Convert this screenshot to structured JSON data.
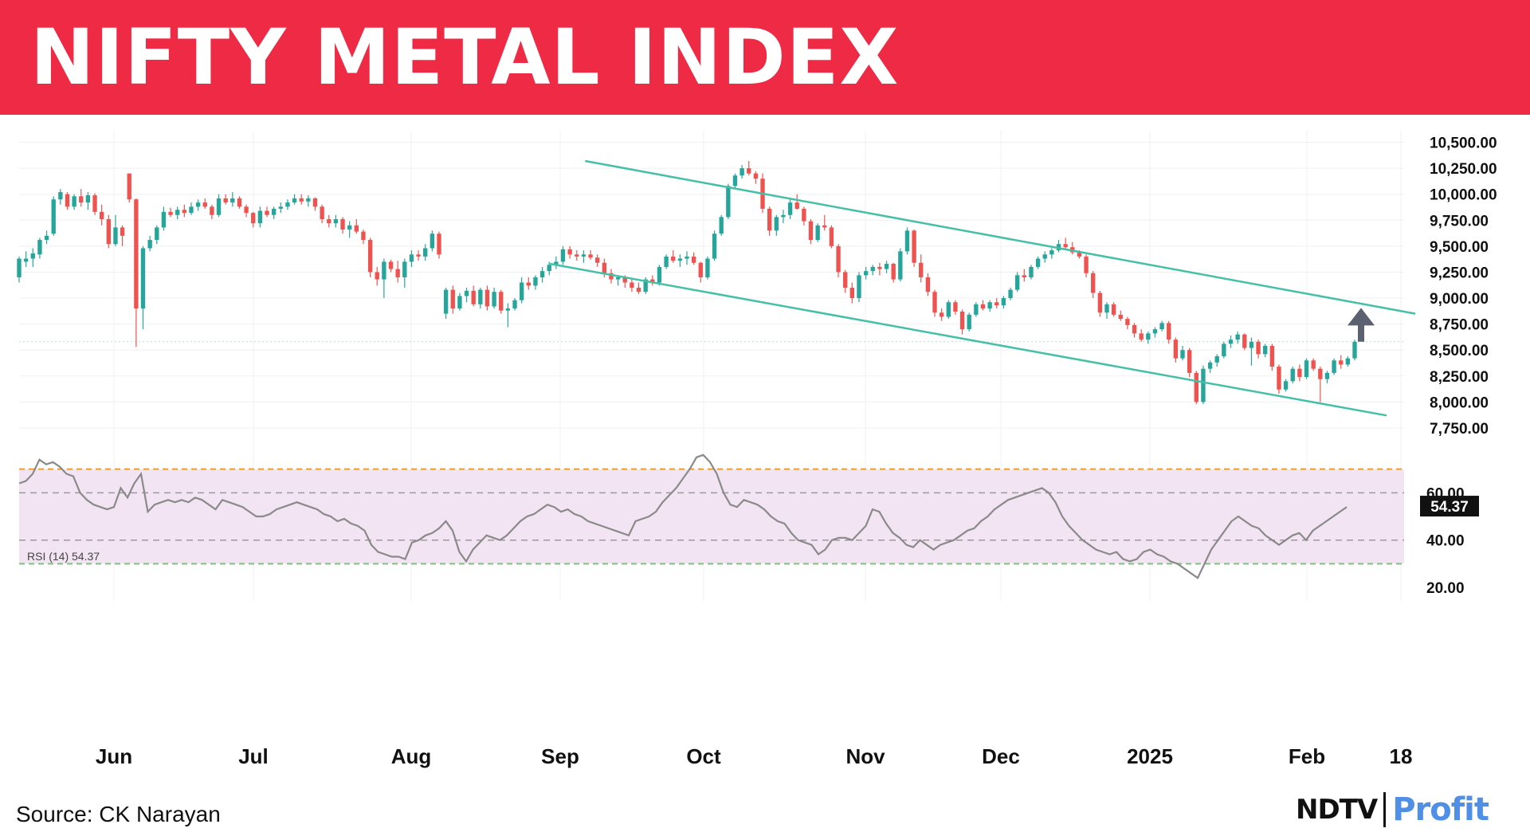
{
  "header": {
    "title": "NIFTY METAL INDEX"
  },
  "footer": {
    "source": "Source: CK Narayan",
    "logo_ndtv": "NDTV",
    "logo_profit": "Profit"
  },
  "colors": {
    "banner": "#ee2a44",
    "up": "#26a69a",
    "down": "#ef5350",
    "channel": "#45bfa6",
    "rsi_band": "#f2e4f2",
    "rsi_line": "#8a8a8a",
    "overbought": "#f0a020",
    "oversold": "#7cc47c",
    "profit": "#4f8fe6"
  },
  "chart_data": {
    "type": "candlestick",
    "price_axis": {
      "ylim": [
        7650,
        10550
      ],
      "ticks": [
        10500,
        10250,
        10000,
        9750,
        9500,
        9250,
        9000,
        8750,
        8500,
        8250,
        8000,
        7750
      ],
      "tick_labels": [
        "10,500.00",
        "10,250.00",
        "10,000.00",
        "9,750.00",
        "9,500.00",
        "9,250.00",
        "9,000.00",
        "8,750.00",
        "8,500.00",
        "8,250.00",
        "8,000.00",
        "7,750.00"
      ]
    },
    "x_axis": {
      "labels": [
        "Jun",
        "Jul",
        "Aug",
        "Sep",
        "Oct",
        "Nov",
        "Dec",
        "2025",
        "Feb",
        "18"
      ]
    },
    "reference_line": 8580,
    "candles": [
      [
        9200,
        9400,
        9150,
        9380
      ],
      [
        9350,
        9450,
        9300,
        9380
      ],
      [
        9380,
        9480,
        9300,
        9430
      ],
      [
        9420,
        9580,
        9380,
        9560
      ],
      [
        9560,
        9650,
        9520,
        9600
      ],
      [
        9620,
        9980,
        9600,
        9950
      ],
      [
        9950,
        10050,
        9900,
        10020
      ],
      [
        10000,
        10020,
        9850,
        9880
      ],
      [
        9880,
        10000,
        9850,
        9980
      ],
      [
        9980,
        10050,
        9880,
        9920
      ],
      [
        9920,
        10020,
        9850,
        9990
      ],
      [
        9990,
        10010,
        9800,
        9830
      ],
      [
        9830,
        9900,
        9700,
        9760
      ],
      [
        9760,
        9800,
        9480,
        9520
      ],
      [
        9520,
        9800,
        9500,
        9680
      ],
      [
        9680,
        9700,
        9500,
        9600
      ],
      [
        10200,
        10200,
        9920,
        9950
      ],
      [
        9950,
        9960,
        8530,
        8900
      ],
      [
        8900,
        9500,
        8700,
        9480
      ],
      [
        9480,
        9600,
        9450,
        9560
      ],
      [
        9560,
        9700,
        9520,
        9680
      ],
      [
        9680,
        9880,
        9650,
        9830
      ],
      [
        9830,
        9870,
        9780,
        9800
      ],
      [
        9800,
        9880,
        9760,
        9850
      ],
      [
        9850,
        9900,
        9780,
        9820
      ],
      [
        9820,
        9920,
        9800,
        9880
      ],
      [
        9880,
        9950,
        9840,
        9920
      ],
      [
        9920,
        9960,
        9860,
        9880
      ],
      [
        9880,
        9900,
        9760,
        9800
      ],
      [
        9800,
        10000,
        9780,
        9960
      ],
      [
        9960,
        10000,
        9900,
        9920
      ],
      [
        9920,
        10020,
        9880,
        9960
      ],
      [
        9960,
        9980,
        9860,
        9880
      ],
      [
        9880,
        9900,
        9780,
        9820
      ],
      [
        9820,
        9830,
        9680,
        9720
      ],
      [
        9720,
        9880,
        9680,
        9840
      ],
      [
        9840,
        9880,
        9780,
        9800
      ],
      [
        9800,
        9880,
        9760,
        9860
      ],
      [
        9860,
        9920,
        9820,
        9880
      ],
      [
        9880,
        9950,
        9850,
        9920
      ],
      [
        9920,
        10000,
        9900,
        9960
      ],
      [
        9960,
        10000,
        9900,
        9930
      ],
      [
        9930,
        9990,
        9880,
        9960
      ],
      [
        9960,
        9970,
        9840,
        9880
      ],
      [
        9880,
        9900,
        9720,
        9760
      ],
      [
        9760,
        9800,
        9680,
        9720
      ],
      [
        9720,
        9800,
        9680,
        9760
      ],
      [
        9760,
        9780,
        9620,
        9660
      ],
      [
        9660,
        9740,
        9580,
        9700
      ],
      [
        9700,
        9760,
        9620,
        9640
      ],
      [
        9640,
        9660,
        9520,
        9560
      ],
      [
        9560,
        9580,
        9200,
        9250
      ],
      [
        9250,
        9300,
        9120,
        9180
      ],
      [
        9180,
        9380,
        9000,
        9350
      ],
      [
        9350,
        9370,
        9250,
        9280
      ],
      [
        9280,
        9360,
        9150,
        9200
      ],
      [
        9200,
        9380,
        9100,
        9350
      ],
      [
        9350,
        9460,
        9300,
        9420
      ],
      [
        9420,
        9460,
        9360,
        9400
      ],
      [
        9400,
        9520,
        9360,
        9480
      ],
      [
        9480,
        9650,
        9450,
        9620
      ],
      [
        9620,
        9640,
        9380,
        9420
      ],
      [
        8850,
        9100,
        8800,
        9080
      ],
      [
        9080,
        9120,
        8850,
        8900
      ],
      [
        8900,
        9050,
        8880,
        9020
      ],
      [
        9020,
        9100,
        8960,
        9070
      ],
      [
        9070,
        9120,
        8920,
        8940
      ],
      [
        8940,
        9100,
        8900,
        9080
      ],
      [
        9080,
        9120,
        8880,
        8920
      ],
      [
        8920,
        9100,
        8900,
        9060
      ],
      [
        9060,
        9080,
        8850,
        8880
      ],
      [
        8880,
        8950,
        8720,
        8900
      ],
      [
        8900,
        9000,
        8880,
        8980
      ],
      [
        8980,
        9200,
        8950,
        9150
      ],
      [
        9150,
        9200,
        9080,
        9120
      ],
      [
        9120,
        9220,
        9080,
        9200
      ],
      [
        9200,
        9300,
        9150,
        9260
      ],
      [
        9260,
        9350,
        9220,
        9320
      ],
      [
        9320,
        9400,
        9280,
        9350
      ],
      [
        9350,
        9500,
        9320,
        9470
      ],
      [
        9470,
        9500,
        9380,
        9420
      ],
      [
        9420,
        9460,
        9360,
        9400
      ],
      [
        9400,
        9460,
        9340,
        9420
      ],
      [
        9420,
        9460,
        9370,
        9390
      ],
      [
        9390,
        9420,
        9300,
        9340
      ],
      [
        9340,
        9380,
        9200,
        9240
      ],
      [
        9240,
        9280,
        9140,
        9180
      ],
      [
        9180,
        9220,
        9120,
        9200
      ],
      [
        9200,
        9220,
        9100,
        9150
      ],
      [
        9150,
        9180,
        9060,
        9100
      ],
      [
        9100,
        9150,
        9040,
        9060
      ],
      [
        9060,
        9200,
        9040,
        9180
      ],
      [
        9180,
        9220,
        9120,
        9150
      ],
      [
        9150,
        9320,
        9120,
        9300
      ],
      [
        9300,
        9420,
        9280,
        9400
      ],
      [
        9400,
        9460,
        9340,
        9360
      ],
      [
        9360,
        9420,
        9300,
        9380
      ],
      [
        9380,
        9450,
        9320,
        9400
      ],
      [
        9400,
        9440,
        9320,
        9340
      ],
      [
        9340,
        9350,
        9150,
        9200
      ],
      [
        9200,
        9400,
        9180,
        9380
      ],
      [
        9380,
        9650,
        9360,
        9620
      ],
      [
        9620,
        9800,
        9600,
        9780
      ],
      [
        9780,
        10100,
        9760,
        10080
      ],
      [
        10080,
        10200,
        10050,
        10180
      ],
      [
        10180,
        10280,
        10150,
        10250
      ],
      [
        10250,
        10320,
        10180,
        10200
      ],
      [
        10200,
        10220,
        10100,
        10150
      ],
      [
        10150,
        10200,
        9820,
        9860
      ],
      [
        9860,
        9880,
        9600,
        9650
      ],
      [
        9650,
        9800,
        9600,
        9780
      ],
      [
        9780,
        9850,
        9720,
        9800
      ],
      [
        9800,
        9950,
        9760,
        9920
      ],
      [
        9920,
        10000,
        9850,
        9860
      ],
      [
        9860,
        9880,
        9700,
        9740
      ],
      [
        9740,
        9760,
        9520,
        9560
      ],
      [
        9560,
        9720,
        9540,
        9700
      ],
      [
        9700,
        9800,
        9650,
        9680
      ],
      [
        9680,
        9700,
        9480,
        9500
      ],
      [
        9500,
        9520,
        9200,
        9250
      ],
      [
        9250,
        9270,
        9050,
        9100
      ],
      [
        9100,
        9150,
        8950,
        9000
      ],
      [
        9000,
        9250,
        8960,
        9220
      ],
      [
        9220,
        9300,
        9180,
        9260
      ],
      [
        9260,
        9320,
        9220,
        9300
      ],
      [
        9300,
        9340,
        9220,
        9280
      ],
      [
        9280,
        9360,
        9240,
        9330
      ],
      [
        9330,
        9340,
        9150,
        9180
      ],
      [
        9180,
        9480,
        9160,
        9450
      ],
      [
        9450,
        9680,
        9420,
        9650
      ],
      [
        9650,
        9660,
        9300,
        9340
      ],
      [
        9340,
        9420,
        9150,
        9200
      ],
      [
        9200,
        9240,
        9020,
        9060
      ],
      [
        9060,
        9080,
        8820,
        8860
      ],
      [
        8860,
        8900,
        8780,
        8820
      ],
      [
        8820,
        8980,
        8800,
        8960
      ],
      [
        8960,
        8980,
        8840,
        8870
      ],
      [
        8870,
        8890,
        8650,
        8700
      ],
      [
        8700,
        8860,
        8680,
        8840
      ],
      [
        8840,
        8960,
        8820,
        8940
      ],
      [
        8940,
        8980,
        8880,
        8900
      ],
      [
        8900,
        8980,
        8870,
        8960
      ],
      [
        8960,
        9000,
        8900,
        8930
      ],
      [
        8930,
        9020,
        8900,
        9000
      ],
      [
        9000,
        9100,
        8980,
        9080
      ],
      [
        9080,
        9250,
        9060,
        9220
      ],
      [
        9220,
        9280,
        9160,
        9200
      ],
      [
        9200,
        9320,
        9180,
        9300
      ],
      [
        9300,
        9400,
        9280,
        9380
      ],
      [
        9380,
        9450,
        9340,
        9420
      ],
      [
        9420,
        9480,
        9380,
        9460
      ],
      [
        9460,
        9560,
        9440,
        9520
      ],
      [
        9520,
        9580,
        9460,
        9490
      ],
      [
        9490,
        9540,
        9420,
        9440
      ],
      [
        9440,
        9460,
        9380,
        9400
      ],
      [
        9400,
        9420,
        9200,
        9240
      ],
      [
        9240,
        9260,
        9000,
        9050
      ],
      [
        9050,
        9070,
        8820,
        8860
      ],
      [
        8860,
        8960,
        8800,
        8940
      ],
      [
        8940,
        8960,
        8820,
        8840
      ],
      [
        8840,
        8880,
        8780,
        8800
      ],
      [
        8800,
        8820,
        8700,
        8740
      ],
      [
        8740,
        8760,
        8620,
        8660
      ],
      [
        8660,
        8700,
        8580,
        8600
      ],
      [
        8600,
        8680,
        8560,
        8660
      ],
      [
        8660,
        8720,
        8620,
        8700
      ],
      [
        8700,
        8780,
        8680,
        8760
      ],
      [
        8760,
        8780,
        8560,
        8600
      ],
      [
        8600,
        8620,
        8380,
        8420
      ],
      [
        8420,
        8540,
        8400,
        8500
      ],
      [
        8500,
        8520,
        8240,
        8280
      ],
      [
        8280,
        8300,
        7980,
        8000
      ],
      [
        8000,
        8350,
        7980,
        8320
      ],
      [
        8320,
        8400,
        8280,
        8380
      ],
      [
        8380,
        8460,
        8340,
        8440
      ],
      [
        8440,
        8580,
        8420,
        8560
      ],
      [
        8560,
        8640,
        8520,
        8600
      ],
      [
        8600,
        8680,
        8560,
        8650
      ],
      [
        8650,
        8660,
        8500,
        8520
      ],
      [
        8520,
        8620,
        8350,
        8580
      ],
      [
        8580,
        8600,
        8420,
        8460
      ],
      [
        8460,
        8560,
        8430,
        8540
      ],
      [
        8540,
        8560,
        8300,
        8340
      ],
      [
        8340,
        8360,
        8080,
        8120
      ],
      [
        8120,
        8220,
        8100,
        8200
      ],
      [
        8200,
        8340,
        8180,
        8320
      ],
      [
        8320,
        8360,
        8200,
        8240
      ],
      [
        8240,
        8420,
        8220,
        8400
      ],
      [
        8400,
        8420,
        8300,
        8320
      ],
      [
        8320,
        8340,
        8000,
        8220
      ],
      [
        8220,
        8300,
        8180,
        8280
      ],
      [
        8280,
        8420,
        8260,
        8400
      ],
      [
        8400,
        8450,
        8320,
        8360
      ],
      [
        8360,
        8440,
        8340,
        8420
      ],
      [
        8420,
        8600,
        8400,
        8580
      ]
    ],
    "channel": {
      "upper": [
        [
          -1,
          10320
        ],
        [
          42,
          8850
        ]
      ],
      "lower": [
        [
          -1,
          9330
        ],
        [
          42,
          7870
        ]
      ]
    },
    "arrow": {
      "from": 8580,
      "to": 8890
    },
    "rsi": {
      "label": "RSI (14)",
      "current": 54.37,
      "current_label": "54.37",
      "ylim": [
        17,
        81
      ],
      "ticks": [
        60,
        40,
        20
      ],
      "tick_labels": [
        "60.00",
        "40.00",
        "20.00"
      ],
      "overbought": 70,
      "oversold": 30,
      "values": [
        64,
        65,
        68,
        74,
        72,
        73,
        71,
        68,
        67,
        60,
        57,
        55,
        54,
        53,
        54,
        62,
        58,
        64,
        68,
        52,
        55,
        56,
        57,
        56,
        57,
        56,
        58,
        57,
        55,
        53,
        57,
        56,
        55,
        54,
        52,
        50,
        50,
        51,
        53,
        54,
        55,
        56,
        55,
        54,
        53,
        51,
        50,
        48,
        49,
        47,
        46,
        44,
        38,
        35,
        34,
        33,
        33,
        32,
        39,
        40,
        42,
        43,
        45,
        48,
        44,
        35,
        31,
        36,
        39,
        42,
        41,
        40,
        42,
        45,
        48,
        50,
        51,
        53,
        55,
        54,
        52,
        53,
        51,
        50,
        48,
        47,
        46,
        45,
        44,
        43,
        42,
        48,
        49,
        50,
        52,
        56,
        59,
        62,
        66,
        70,
        75,
        76,
        73,
        68,
        60,
        55,
        54,
        57,
        56,
        55,
        53,
        50,
        48,
        47,
        43,
        40,
        39,
        38,
        34,
        36,
        40,
        41,
        41,
        40,
        43,
        46,
        53,
        52,
        47,
        43,
        41,
        38,
        37,
        40,
        38,
        36,
        38,
        39,
        40,
        42,
        44,
        45,
        48,
        50,
        53,
        55,
        57,
        58,
        59,
        60,
        61,
        62,
        60,
        56,
        50,
        46,
        43,
        40,
        38,
        36,
        35,
        34,
        35,
        32,
        31,
        32,
        35,
        36,
        34,
        33,
        31,
        30,
        28,
        26,
        24,
        30,
        36,
        40,
        44,
        48,
        50,
        48,
        46,
        45,
        42,
        40,
        38,
        40,
        42,
        43,
        40,
        44,
        46,
        48,
        50,
        52,
        54
      ]
    }
  }
}
